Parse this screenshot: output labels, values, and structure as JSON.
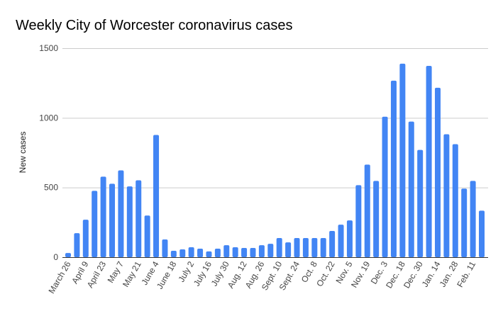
{
  "chart_data": {
    "type": "bar",
    "title": "Weekly City of Worcester coronavirus cases",
    "xlabel": "",
    "ylabel": "New cases",
    "ylim": [
      0,
      1500
    ],
    "yticks": [
      0,
      500,
      1000,
      1500
    ],
    "grid": true,
    "color": "#4285f4",
    "tick_labels": [
      "March 26",
      "April 9",
      "April 23",
      "May 7",
      "May 21",
      "June 4",
      "June 18",
      "July 2",
      "July 16",
      "July 30",
      "Aug. 12",
      "Aug. 26",
      "Sept. 10",
      "Sept. 24",
      "Oct. 8",
      "Oct. 22",
      "Nov. 5",
      "Nov. 19",
      "Dec. 3",
      "Dec. 18",
      "Dec. 30",
      "Jan. 14",
      "Jan. 28",
      "Feb. 11"
    ],
    "tick_every": 2,
    "values": [
      30,
      172,
      269,
      476,
      578,
      527,
      623,
      508,
      552,
      299,
      877,
      127,
      46,
      56,
      71,
      61,
      41,
      61,
      86,
      71,
      66,
      66,
      86,
      96,
      137,
      106,
      137,
      137,
      137,
      137,
      188,
      233,
      264,
      517,
      664,
      547,
      1008,
      1267,
      1389,
      973,
      770,
      1373,
      1216,
      882,
      811,
      492,
      547,
      334
    ]
  }
}
